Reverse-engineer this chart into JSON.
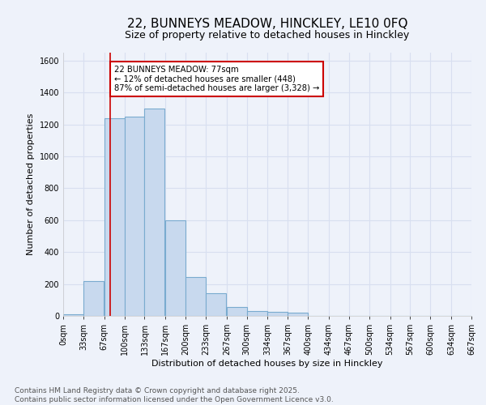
{
  "title": "22, BUNNEYS MEADOW, HINCKLEY, LE10 0FQ",
  "subtitle": "Size of property relative to detached houses in Hinckley",
  "xlabel": "Distribution of detached houses by size in Hinckley",
  "ylabel": "Number of detached properties",
  "bar_color": "#c8d9ee",
  "bar_edge_color": "#7aabcf",
  "background_color": "#eef2fa",
  "grid_color": "#d8dff0",
  "bins_left": [
    0,
    33,
    67,
    100,
    133,
    167,
    200,
    233,
    267,
    300,
    334,
    367,
    400,
    434,
    467,
    500,
    534,
    567,
    600,
    634
  ],
  "bin_width": 33,
  "counts": [
    10,
    220,
    1240,
    1250,
    1300,
    600,
    245,
    140,
    55,
    30,
    25,
    20,
    0,
    0,
    0,
    0,
    0,
    0,
    0,
    0
  ],
  "tick_labels": [
    "0sqm",
    "33sqm",
    "67sqm",
    "100sqm",
    "133sqm",
    "167sqm",
    "200sqm",
    "233sqm",
    "267sqm",
    "300sqm",
    "334sqm",
    "367sqm",
    "400sqm",
    "434sqm",
    "467sqm",
    "500sqm",
    "534sqm",
    "567sqm",
    "600sqm",
    "634sqm",
    "667sqm"
  ],
  "tick_positions": [
    0,
    33,
    67,
    100,
    133,
    167,
    200,
    233,
    267,
    300,
    334,
    367,
    400,
    434,
    467,
    500,
    534,
    567,
    600,
    634,
    667
  ],
  "property_size": 77,
  "red_line_color": "#cc0000",
  "annotation_line1": "22 BUNNEYS MEADOW: 77sqm",
  "annotation_line2": "← 12% of detached houses are smaller (448)",
  "annotation_line3": "87% of semi-detached houses are larger (3,328) →",
  "annotation_box_color": "#ffffff",
  "annotation_box_edge": "#cc0000",
  "ylim": [
    0,
    1650
  ],
  "yticks": [
    0,
    200,
    400,
    600,
    800,
    1000,
    1200,
    1400,
    1600
  ],
  "footer_text": "Contains HM Land Registry data © Crown copyright and database right 2025.\nContains public sector information licensed under the Open Government Licence v3.0.",
  "title_fontsize": 11,
  "subtitle_fontsize": 9,
  "axis_label_fontsize": 8,
  "tick_fontsize": 7,
  "footer_fontsize": 6.5
}
